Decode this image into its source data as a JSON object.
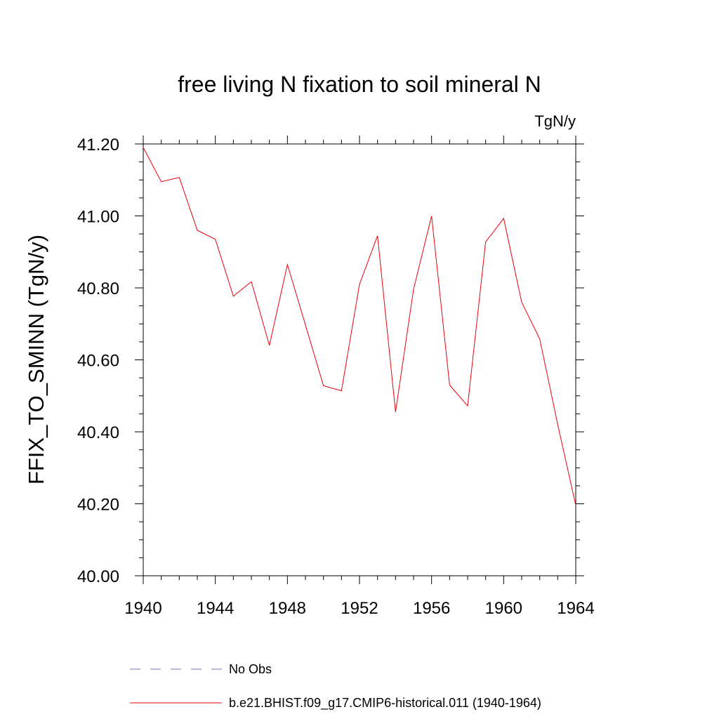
{
  "chart_data": {
    "type": "line",
    "title": "free living N fixation to soil mineral N",
    "units": "TgN/y",
    "ylabel": "FFIX_TO_SMINN  (TgN/y)",
    "xlabel": "",
    "xlim": [
      1940,
      1964
    ],
    "ylim": [
      40.0,
      41.2
    ],
    "x_ticks": [
      1940,
      1944,
      1948,
      1952,
      1956,
      1960,
      1964
    ],
    "y_ticks": [
      "40.00",
      "40.20",
      "40.40",
      "40.60",
      "40.80",
      "41.00",
      "41.20"
    ],
    "grid": false,
    "legend_placement": "bottom",
    "series": [
      {
        "name": "No Obs",
        "color": "#7b6fb0",
        "style": "dashed",
        "x": [],
        "values": []
      },
      {
        "name": "b.e21.BHIST.f09_g17.CMIP6-historical.011 (1940-1964)",
        "color": "#e8000b",
        "style": "solid",
        "x": [
          1940,
          1941,
          1942,
          1943,
          1944,
          1945,
          1946,
          1947,
          1948,
          1949,
          1950,
          1951,
          1952,
          1953,
          1954,
          1955,
          1956,
          1957,
          1958,
          1959,
          1960,
          1961,
          1962,
          1963,
          1964
        ],
        "values": [
          41.19,
          41.095,
          41.107,
          40.96,
          40.935,
          40.777,
          40.817,
          40.64,
          40.865,
          40.697,
          40.528,
          40.514,
          40.81,
          40.945,
          40.455,
          40.796,
          41.0,
          40.53,
          40.472,
          40.928,
          40.993,
          40.76,
          40.658,
          40.42,
          40.196
        ]
      }
    ]
  }
}
